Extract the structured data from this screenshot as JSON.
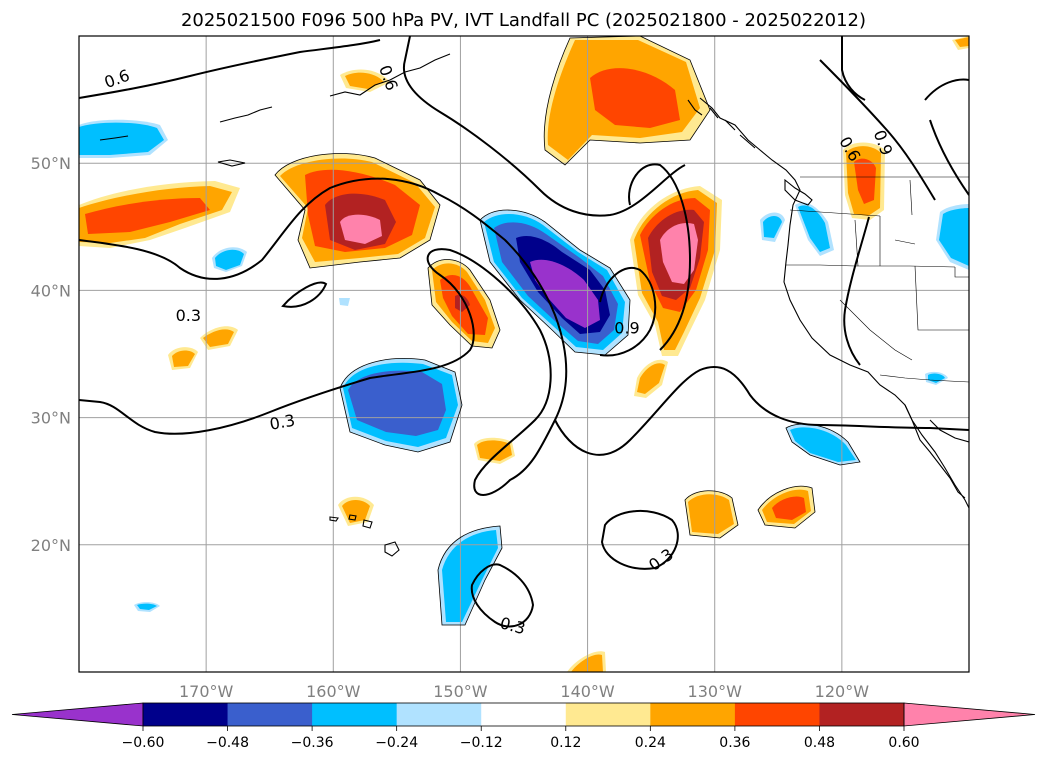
{
  "title": "2025021500 F096 500 hPa PV, IVT Landfall PC (2025021800 - 2025022012)",
  "map": {
    "lon_range": [
      -180,
      -110
    ],
    "lat_range": [
      10,
      60
    ],
    "lat_ticks": [
      {
        "value": 50,
        "label": "50°N"
      },
      {
        "value": 40,
        "label": "40°N"
      },
      {
        "value": 30,
        "label": "30°N"
      },
      {
        "value": 20,
        "label": "20°N"
      }
    ],
    "lon_ticks": [
      {
        "value": -170,
        "label": "170°W"
      },
      {
        "value": -160,
        "label": "160°W"
      },
      {
        "value": -150,
        "label": "150°W"
      },
      {
        "value": -140,
        "label": "140°W"
      },
      {
        "value": -130,
        "label": "130°W"
      },
      {
        "value": -120,
        "label": "120°W"
      }
    ],
    "grid": true,
    "contour_labels": [
      {
        "text": "0.6",
        "lon": -177,
        "lat": 56.6,
        "rotate": -20
      },
      {
        "text": "0.6",
        "lon": -155.7,
        "lat": 56.7,
        "rotate": 70
      },
      {
        "text": "0.3",
        "lon": -171.4,
        "lat": 38.0,
        "rotate": 0
      },
      {
        "text": "0.3",
        "lon": -164.0,
        "lat": 29.6,
        "rotate": -10
      },
      {
        "text": "0.9",
        "lon": -136.9,
        "lat": 37.0,
        "rotate": 0
      },
      {
        "text": "0.3",
        "lon": -134.2,
        "lat": 18.8,
        "rotate": -35
      },
      {
        "text": "0.3",
        "lon": -145.9,
        "lat": 13.6,
        "rotate": 15
      },
      {
        "text": "0.6",
        "lon": -119.4,
        "lat": 51.1,
        "rotate": 60
      },
      {
        "text": "0.9",
        "lon": -116.8,
        "lat": 51.6,
        "rotate": 70
      }
    ]
  },
  "colorbar": {
    "colors": [
      "#9932cc",
      "#00008b",
      "#3a5fcd",
      "#00bfff",
      "#b0e2ff",
      "#ffffff",
      "#ffe991",
      "#ffa500",
      "#ff4500",
      "#b22222",
      "#ff82ab"
    ],
    "tick_labels": [
      "−0.60",
      "−0.48",
      "−0.36",
      "−0.24",
      "−0.12",
      "0.12",
      "0.24",
      "0.36",
      "0.48",
      "0.60"
    ],
    "extend": "both"
  },
  "fill_colors": {
    "pos1": "#ffe991",
    "pos2": "#ffa500",
    "pos3": "#ff4500",
    "pos4": "#b22222",
    "pos5": "#ff82ab",
    "neg1": "#b0e2ff",
    "neg2": "#00bfff",
    "neg3": "#3a5fcd",
    "neg4": "#00008b",
    "neg5": "#9932cc"
  }
}
